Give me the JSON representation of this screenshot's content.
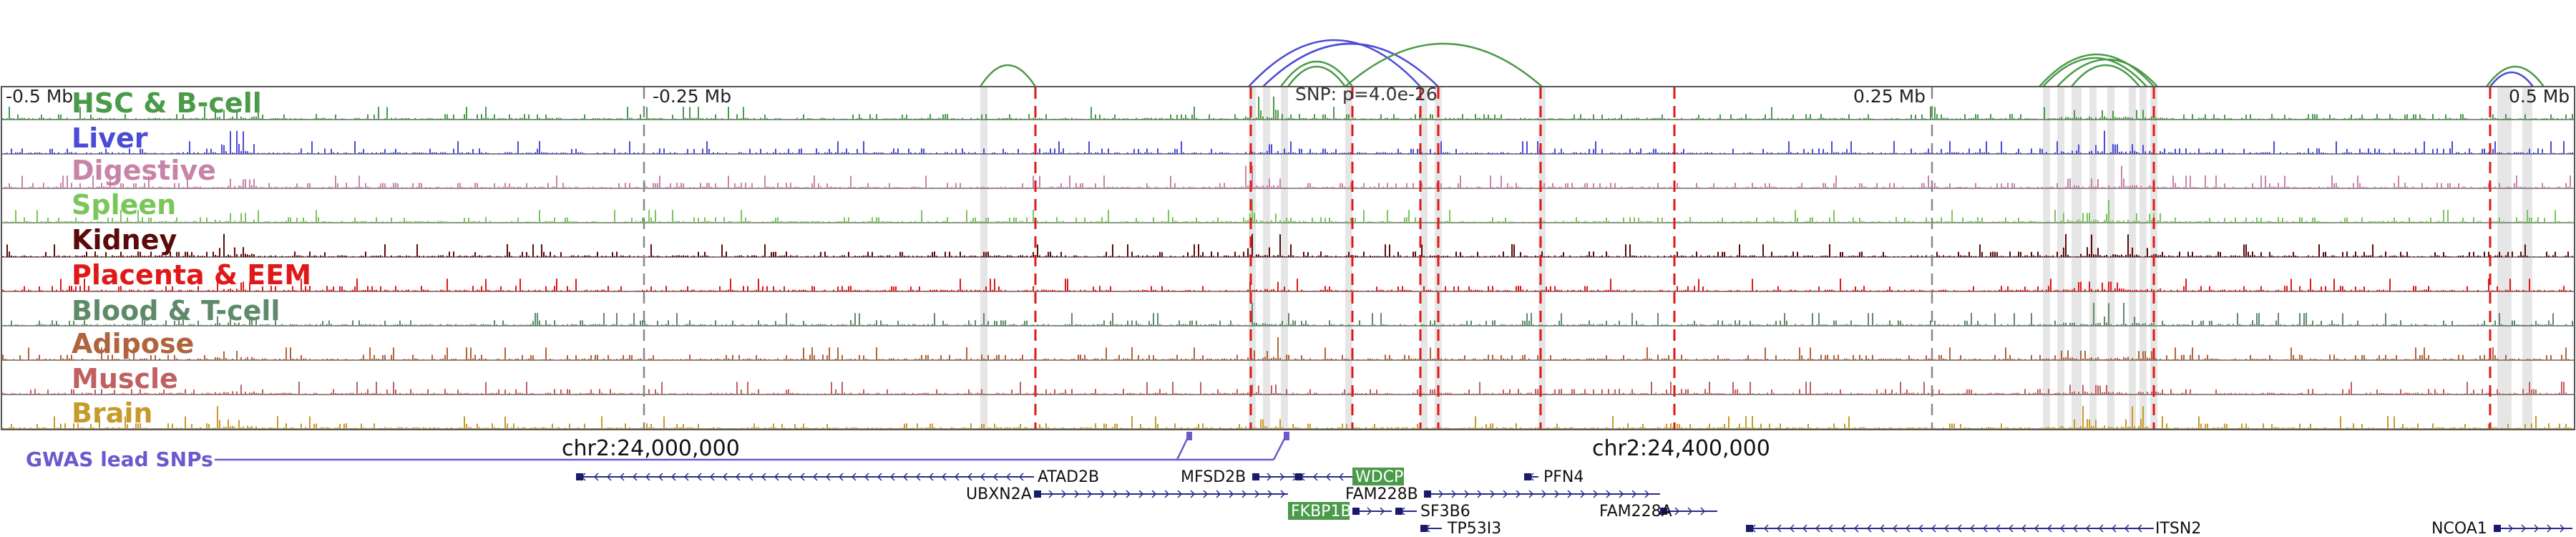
{
  "scale": {
    "minus_half": "-0.5 Mb",
    "minus_quarter": "-0.25 Mb",
    "plus_quarter": "0.25 Mb",
    "plus_half": "0.5 Mb"
  },
  "snp_label": "SNP: p=4.0e-26",
  "tracks": [
    {
      "name": "HSC & B-cell",
      "color": "#4a9a4a"
    },
    {
      "name": "Liver",
      "color": "#4b4bd6"
    },
    {
      "name": "Digestive",
      "color": "#c884a8"
    },
    {
      "name": "Spleen",
      "color": "#7ac65a"
    },
    {
      "name": "Kidney",
      "color": "#5a0a0a"
    },
    {
      "name": "Placenta & EEM",
      "color": "#e01818"
    },
    {
      "name": "Blood & T-cell",
      "color": "#5f8a6a"
    },
    {
      "name": "Adipose",
      "color": "#b0643c"
    },
    {
      "name": "Muscle",
      "color": "#c06060"
    },
    {
      "name": "Brain",
      "color": "#c89a2a"
    }
  ],
  "gwas": {
    "label": "GWAS lead SNPs",
    "color": "#6a5acd"
  },
  "coordinates": {
    "left": "chr2:24,000,000",
    "right": "chr2:24,400,000"
  },
  "genes": [
    {
      "name": "ATAD2B",
      "highlight": false
    },
    {
      "name": "UBXN2A",
      "highlight": false
    },
    {
      "name": "MFSD2B",
      "highlight": false
    },
    {
      "name": "WDCP",
      "highlight": true
    },
    {
      "name": "FAM228B",
      "highlight": false
    },
    {
      "name": "PFN4",
      "highlight": false
    },
    {
      "name": "FKBP1B",
      "highlight": true
    },
    {
      "name": "SF3B6",
      "highlight": false
    },
    {
      "name": "TP53I3",
      "highlight": false
    },
    {
      "name": "FAM228A",
      "highlight": false
    },
    {
      "name": "ITSN2",
      "highlight": false
    },
    {
      "name": "NCOA1",
      "highlight": false
    }
  ],
  "colors": {
    "highlight_gene_bg": "#4a9a4a",
    "gene_line": "#2a2a8a",
    "marker_red": "#e01818",
    "loop_blue": "#4b4bd6",
    "loop_green": "#4a9a4a"
  }
}
